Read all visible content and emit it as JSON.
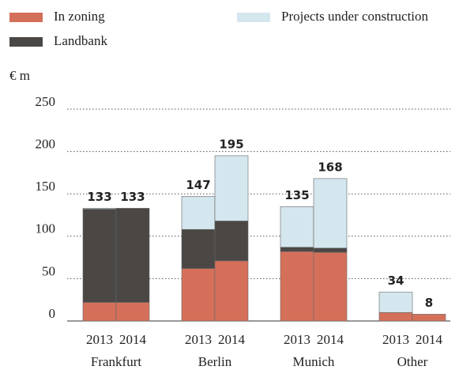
{
  "chart_data": {
    "type": "stacked_bar",
    "y_unit": "€ m",
    "groups": [
      "Frankfurt",
      "Berlin",
      "Munich",
      "Other"
    ],
    "categories": [
      "2013",
      "2014",
      "2013",
      "2014",
      "2013",
      "2014",
      "2013",
      "2014"
    ],
    "series": [
      {
        "name": "In zoning",
        "color": "#d4705a",
        "values": [
          22,
          22,
          62,
          71,
          82,
          81,
          10,
          8
        ]
      },
      {
        "name": "Landbank",
        "color": "#4a4745",
        "values": [
          110,
          111,
          46,
          47,
          5,
          5,
          0,
          0
        ]
      },
      {
        "name": "Projects under construction",
        "color": "#d4e6ee",
        "values": [
          1,
          0,
          39,
          77,
          48,
          82,
          24,
          0
        ]
      }
    ],
    "totals": [
      133,
      133,
      147,
      195,
      135,
      168,
      34,
      8
    ],
    "ylim": [
      0,
      250
    ],
    "yticks": [
      0,
      50,
      100,
      150,
      200,
      250
    ],
    "grid": true
  }
}
